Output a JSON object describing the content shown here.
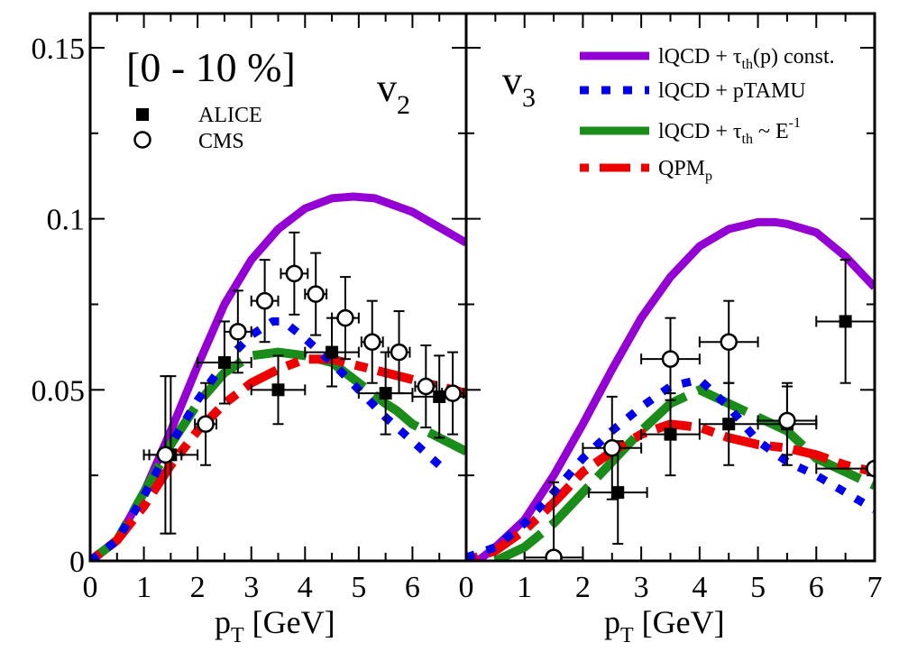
{
  "chart_data": {
    "type": "line",
    "colors": {
      "lqcd_const": "#9400D3",
      "ptamu": "#0000EE",
      "lqcd_inv": "#1A8C1A",
      "qpm": "#EE0000",
      "data": "#000000"
    },
    "legend": [
      {
        "label_main": "lQCD + τ",
        "label_sub": "th",
        "label_tail": "(p) const.",
        "series": "lqcd_const"
      },
      {
        "label_main": "lQCD + pTAMU",
        "series": "ptamu"
      },
      {
        "label_main": "lQCD + τ",
        "label_sub": "th",
        "label_tail": " ~ E",
        "label_sup": "-1",
        "series": "lqcd_inv"
      },
      {
        "label_main": "QPM",
        "label_sub": "p",
        "series": "qpm"
      }
    ],
    "data_legend": [
      {
        "label": "ALICE",
        "marker": "square"
      },
      {
        "label": "CMS",
        "marker": "circle"
      }
    ],
    "centrality": "[0 - 10 %]",
    "panels": [
      {
        "id": "v2",
        "label_main": "v",
        "label_sub": "2",
        "xlabel_main": "p",
        "xlabel_sub": "T",
        "xlabel_tail": " [GeV]",
        "xlim": [
          0,
          7
        ],
        "ylim": [
          0,
          0.16
        ],
        "xticks": [
          "0",
          "1",
          "2",
          "3",
          "4",
          "5",
          "6"
        ],
        "yticks": [
          "0",
          "0.05",
          "0.1",
          "0.15"
        ],
        "series": {
          "lqcd_const": [
            [
              0,
              0
            ],
            [
              0.5,
              0.006
            ],
            [
              1,
              0.02
            ],
            [
              1.5,
              0.038
            ],
            [
              2,
              0.057
            ],
            [
              2.5,
              0.075
            ],
            [
              3,
              0.088
            ],
            [
              3.5,
              0.097
            ],
            [
              4,
              0.103
            ],
            [
              4.5,
              0.106
            ],
            [
              4.9,
              0.1065
            ],
            [
              5.3,
              0.106
            ],
            [
              6,
              0.102
            ],
            [
              7,
              0.093
            ]
          ],
          "ptamu": [
            [
              0,
              0
            ],
            [
              0.5,
              0.006
            ],
            [
              1,
              0.019
            ],
            [
              1.5,
              0.034
            ],
            [
              2,
              0.047
            ],
            [
              2.5,
              0.058
            ],
            [
              3,
              0.066
            ],
            [
              3.4,
              0.07
            ],
            [
              3.6,
              0.07
            ],
            [
              4,
              0.065
            ],
            [
              4.5,
              0.058
            ],
            [
              5,
              0.05
            ],
            [
              5.5,
              0.042
            ],
            [
              6,
              0.035
            ],
            [
              6.5,
              0.028
            ]
          ],
          "lqcd_inv": [
            [
              0,
              0
            ],
            [
              0.5,
              0.006
            ],
            [
              1,
              0.02
            ],
            [
              1.5,
              0.034
            ],
            [
              2,
              0.046
            ],
            [
              2.5,
              0.055
            ],
            [
              3,
              0.06
            ],
            [
              3.5,
              0.061
            ],
            [
              4,
              0.06
            ],
            [
              4.5,
              0.058
            ],
            [
              5,
              0.052
            ],
            [
              5.5,
              0.046
            ],
            [
              5.7,
              0.044
            ],
            [
              6,
              0.04
            ],
            [
              6.5,
              0.036
            ],
            [
              7,
              0.032
            ]
          ],
          "qpm": [
            [
              0,
              0
            ],
            [
              0.5,
              0.006
            ],
            [
              1,
              0.016
            ],
            [
              1.5,
              0.028
            ],
            [
              2,
              0.038
            ],
            [
              2.5,
              0.046
            ],
            [
              3,
              0.052
            ],
            [
              3.5,
              0.056
            ],
            [
              4,
              0.059
            ],
            [
              4.5,
              0.059
            ],
            [
              5,
              0.057
            ],
            [
              5.5,
              0.055
            ],
            [
              6,
              0.053
            ],
            [
              6.5,
              0.051
            ],
            [
              7,
              0.049
            ]
          ]
        },
        "alice": [
          {
            "x": 1.5,
            "y": 0.031,
            "xerr": 0.5,
            "yerr": 0.023
          },
          {
            "x": 2.5,
            "y": 0.058,
            "xerr": 0.5,
            "yerr": 0.012
          },
          {
            "x": 3.5,
            "y": 0.05,
            "xerr": 0.5,
            "yerr": 0.01
          },
          {
            "x": 4.5,
            "y": 0.061,
            "xerr": 0.5,
            "yerr": 0.01
          },
          {
            "x": 5.5,
            "y": 0.049,
            "xerr": 0.5,
            "yerr": 0.012
          },
          {
            "x": 6.5,
            "y": 0.048,
            "xerr": 0.5,
            "yerr": 0.012
          }
        ],
        "cms": [
          {
            "x": 1.4,
            "y": 0.031,
            "xerr": 0.3,
            "yerr": 0.023
          },
          {
            "x": 2.15,
            "y": 0.04,
            "xerr": 0.2,
            "yerr": 0.012
          },
          {
            "x": 2.75,
            "y": 0.067,
            "xerr": 0.25,
            "yerr": 0.012
          },
          {
            "x": 3.25,
            "y": 0.076,
            "xerr": 0.25,
            "yerr": 0.012
          },
          {
            "x": 3.8,
            "y": 0.084,
            "xerr": 0.25,
            "yerr": 0.012
          },
          {
            "x": 4.2,
            "y": 0.078,
            "xerr": 0.2,
            "yerr": 0.012
          },
          {
            "x": 4.75,
            "y": 0.071,
            "xerr": 0.25,
            "yerr": 0.012
          },
          {
            "x": 5.25,
            "y": 0.064,
            "xerr": 0.2,
            "yerr": 0.012
          },
          {
            "x": 5.75,
            "y": 0.061,
            "xerr": 0.2,
            "yerr": 0.012
          },
          {
            "x": 6.25,
            "y": 0.051,
            "xerr": 0.2,
            "yerr": 0.012
          },
          {
            "x": 6.75,
            "y": 0.049,
            "xerr": 0.2,
            "yerr": 0.012
          }
        ]
      },
      {
        "id": "v3",
        "label_main": "v",
        "label_sub": "3",
        "xlabel_main": "p",
        "xlabel_sub": "T",
        "xlabel_tail": " [GeV]",
        "xlim": [
          0,
          7
        ],
        "ylim": [
          0,
          0.16
        ],
        "xticks": [
          "0",
          "1",
          "2",
          "3",
          "4",
          "5",
          "6",
          "7"
        ],
        "yticks": [],
        "series": {
          "lqcd_const": [
            [
              0.2,
              0
            ],
            [
              0.5,
              0.004
            ],
            [
              1,
              0.012
            ],
            [
              1.5,
              0.025
            ],
            [
              2,
              0.04
            ],
            [
              2.5,
              0.056
            ],
            [
              3,
              0.071
            ],
            [
              3.5,
              0.083
            ],
            [
              4,
              0.092
            ],
            [
              4.5,
              0.097
            ],
            [
              5,
              0.099
            ],
            [
              5.3,
              0.099
            ],
            [
              5.5,
              0.0985
            ],
            [
              6,
              0.096
            ],
            [
              6.5,
              0.089
            ],
            [
              7,
              0.08
            ]
          ],
          "ptamu": [
            [
              0,
              0.001
            ],
            [
              0.5,
              0.004
            ],
            [
              1,
              0.011
            ],
            [
              1.5,
              0.02
            ],
            [
              2,
              0.03
            ],
            [
              2.5,
              0.038
            ],
            [
              3,
              0.045
            ],
            [
              3.5,
              0.051
            ],
            [
              4,
              0.053
            ],
            [
              4.5,
              0.045
            ],
            [
              5,
              0.035
            ],
            [
              5.5,
              0.029
            ],
            [
              6,
              0.025
            ],
            [
              6.5,
              0.02
            ],
            [
              7,
              0.015
            ]
          ],
          "lqcd_inv": [
            [
              0.5,
              0
            ],
            [
              1,
              0.004
            ],
            [
              1.5,
              0.011
            ],
            [
              2,
              0.02
            ],
            [
              2.5,
              0.029
            ],
            [
              3,
              0.038
            ],
            [
              3.5,
              0.046
            ],
            [
              4,
              0.05
            ],
            [
              4.5,
              0.046
            ],
            [
              5,
              0.042
            ],
            [
              5.5,
              0.038
            ],
            [
              6,
              0.03
            ],
            [
              6.5,
              0.026
            ],
            [
              7,
              0.022
            ]
          ],
          "qpm": [
            [
              0,
              0
            ],
            [
              0.5,
              0.003
            ],
            [
              1,
              0.009
            ],
            [
              1.5,
              0.017
            ],
            [
              2,
              0.026
            ],
            [
              2.5,
              0.032
            ],
            [
              3,
              0.037
            ],
            [
              3.5,
              0.04
            ],
            [
              4,
              0.039
            ],
            [
              4.5,
              0.036
            ],
            [
              5,
              0.034
            ],
            [
              5.5,
              0.033
            ],
            [
              6,
              0.031
            ],
            [
              6.5,
              0.028
            ],
            [
              7,
              0.026
            ]
          ]
        },
        "alice": [
          {
            "x": 2.6,
            "y": 0.02,
            "xerr": 0.5,
            "yerr": 0.015
          },
          {
            "x": 3.5,
            "y": 0.037,
            "xerr": 0.5,
            "yerr": 0.012
          },
          {
            "x": 4.5,
            "y": 0.04,
            "xerr": 0.5,
            "yerr": 0.012
          },
          {
            "x": 5.5,
            "y": 0.04,
            "xerr": 0.5,
            "yerr": 0.012
          },
          {
            "x": 6.5,
            "y": 0.07,
            "xerr": 0.5,
            "yerr": 0.018
          }
        ],
        "cms": [
          {
            "x": 1.5,
            "y": 0.001,
            "xerr": 0.5,
            "yerr": 0.022
          },
          {
            "x": 2.5,
            "y": 0.033,
            "xerr": 0.5,
            "yerr": 0.015
          },
          {
            "x": 3.5,
            "y": 0.059,
            "xerr": 0.5,
            "yerr": 0.012
          },
          {
            "x": 4.5,
            "y": 0.064,
            "xerr": 0.5,
            "yerr": 0.012
          },
          {
            "x": 5.5,
            "y": 0.041,
            "xerr": 0.5,
            "yerr": 0.01
          },
          {
            "x": 7.0,
            "y": 0.027,
            "xerr": 1.0,
            "yerr": 0.0
          }
        ]
      }
    ]
  }
}
